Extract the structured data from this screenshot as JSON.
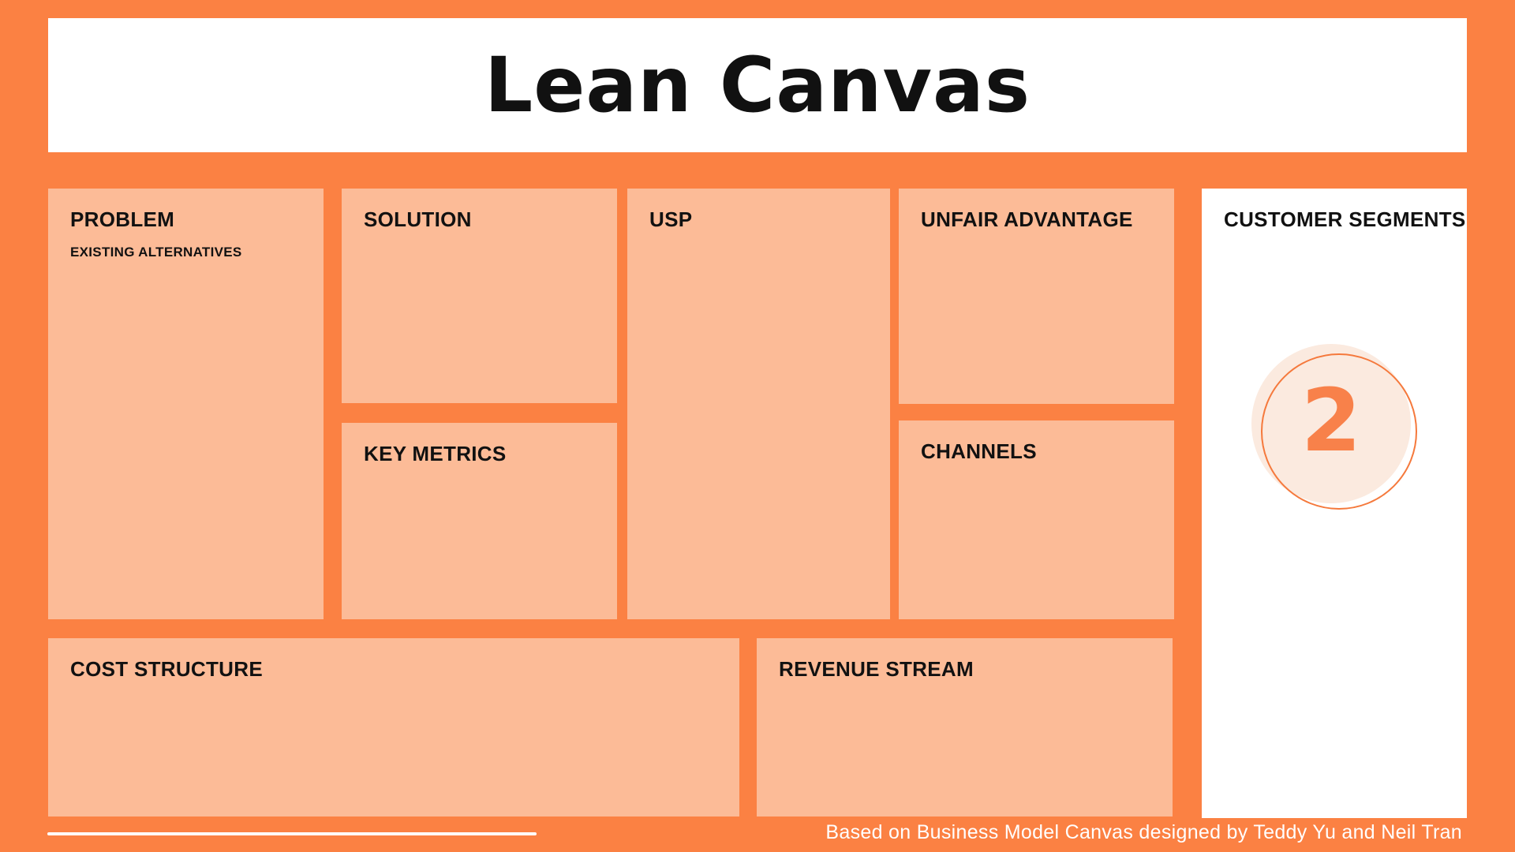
{
  "header": {
    "title": "Lean Canvas"
  },
  "canvas": {
    "problem": {
      "label": "PROBLEM",
      "sublabel": "EXISTING ALTERNATIVES"
    },
    "solution": {
      "label": "SOLUTION"
    },
    "key_metrics": {
      "label": "KEY METRICS"
    },
    "usp": {
      "label": "USP"
    },
    "unfair_advantage": {
      "label": "UNFAIR ADVANTAGE"
    },
    "channels": {
      "label": "CHANNELS"
    },
    "customer_segments": {
      "label": "CUSTOMER SEGMENTS",
      "badge_value": "2"
    },
    "cost_structure": {
      "label": "COST STRUCTURE"
    },
    "revenue_stream": {
      "label": "REVENUE STREAM"
    }
  },
  "footer": {
    "attribution": "Based on Business Model Canvas designed by Teddy Yu and Neil Tran"
  },
  "colors": {
    "background_orange": "#FB8143",
    "panel_salmon": "#FCBB97",
    "panel_white": "#FFFFFF",
    "badge_circle_fill": "#FBEADF",
    "badge_circle_stroke": "#F5793C",
    "badge_number": "#F8814A",
    "heading_text": "#111111",
    "footer_text": "#FFFFFF"
  }
}
